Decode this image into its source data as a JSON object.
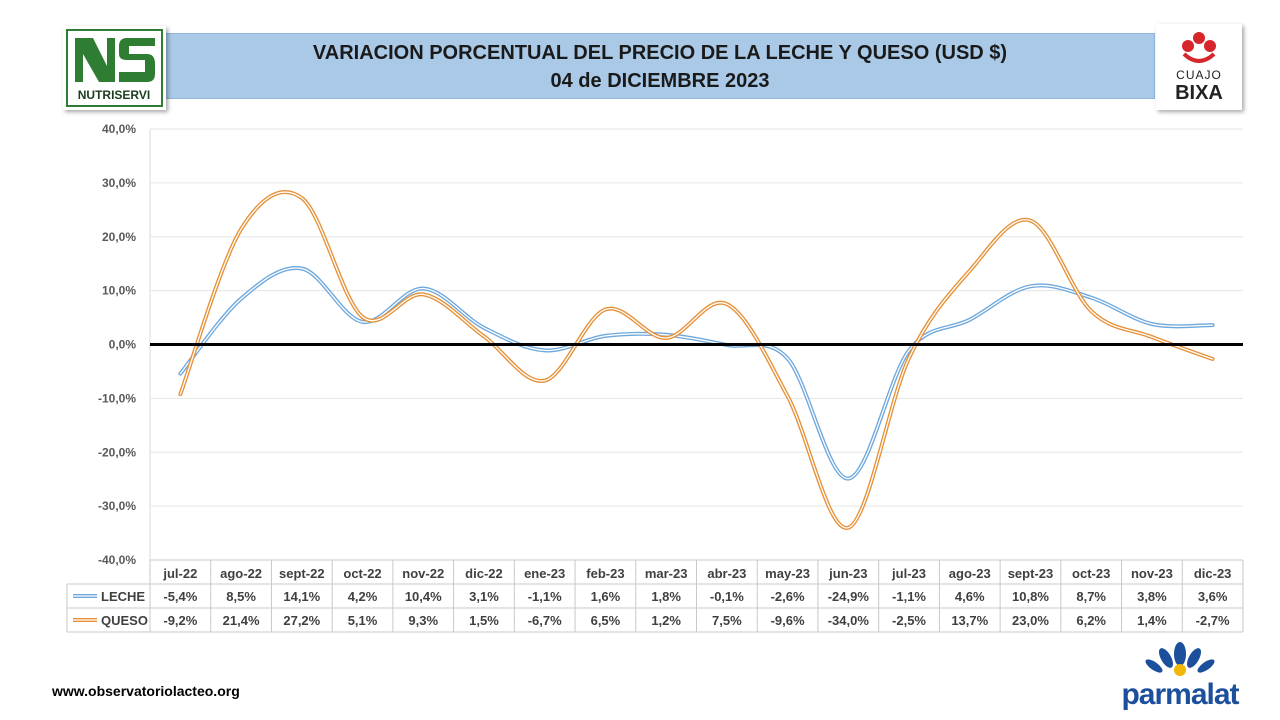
{
  "title": {
    "line1": "VARIACION PORCENTUAL DEL PRECIO DE LA LECHE Y QUESO (USD $)",
    "line2": "04 de DICIEMBRE 2023"
  },
  "logos": {
    "left_brand": "NUTRISERVI",
    "right_brand_top": "CUAJO",
    "right_brand_bottom": "BIXA",
    "bottom_brand": "parmalat"
  },
  "website": "www.observatoriolacteo.org",
  "chart_data": {
    "type": "line",
    "categories": [
      "jul-22",
      "ago-22",
      "sept-22",
      "oct-22",
      "nov-22",
      "dic-22",
      "ene-23",
      "feb-23",
      "mar-23",
      "abr-23",
      "may-23",
      "jun-23",
      "jul-23",
      "ago-23",
      "sept-23",
      "oct-23",
      "nov-23",
      "dic-23"
    ],
    "series": [
      {
        "name": "LECHE",
        "color": "#6fa8dc",
        "values": [
          -5.4,
          8.5,
          14.1,
          4.2,
          10.4,
          3.1,
          -1.1,
          1.6,
          1.8,
          -0.1,
          -2.6,
          -24.9,
          -1.1,
          4.6,
          10.8,
          8.7,
          3.8,
          3.6
        ],
        "labels": [
          "-5,4%",
          "8,5%",
          "14,1%",
          "4,2%",
          "10,4%",
          "3,1%",
          "-1,1%",
          "1,6%",
          "1,8%",
          "-0,1%",
          "-2,6%",
          "-24,9%",
          "-1,1%",
          "4,6%",
          "10,8%",
          "8,7%",
          "3,8%",
          "3,6%"
        ]
      },
      {
        "name": "QUESO",
        "color": "#e69138",
        "values": [
          -9.2,
          21.4,
          27.2,
          5.1,
          9.3,
          1.5,
          -6.7,
          6.5,
          1.2,
          7.5,
          -9.6,
          -34.0,
          -2.5,
          13.7,
          23.0,
          6.2,
          1.4,
          -2.7
        ],
        "labels": [
          "-9,2%",
          "21,4%",
          "27,2%",
          "5,1%",
          "9,3%",
          "1,5%",
          "-6,7%",
          "6,5%",
          "1,2%",
          "7,5%",
          "-9,6%",
          "-34,0%",
          "-2,5%",
          "13,7%",
          "23,0%",
          "6,2%",
          "1,4%",
          "-2,7%"
        ]
      }
    ],
    "yticks": [
      40,
      30,
      20,
      10,
      0,
      -10,
      -20,
      -30,
      -40
    ],
    "ytick_labels": [
      "40,0%",
      "30,0%",
      "20,0%",
      "10,0%",
      "0,0%",
      "-10,0%",
      "-20,0%",
      "-30,0%",
      "-40,0%"
    ],
    "ylim": [
      -40,
      40
    ],
    "grid": true,
    "data_table": true
  }
}
